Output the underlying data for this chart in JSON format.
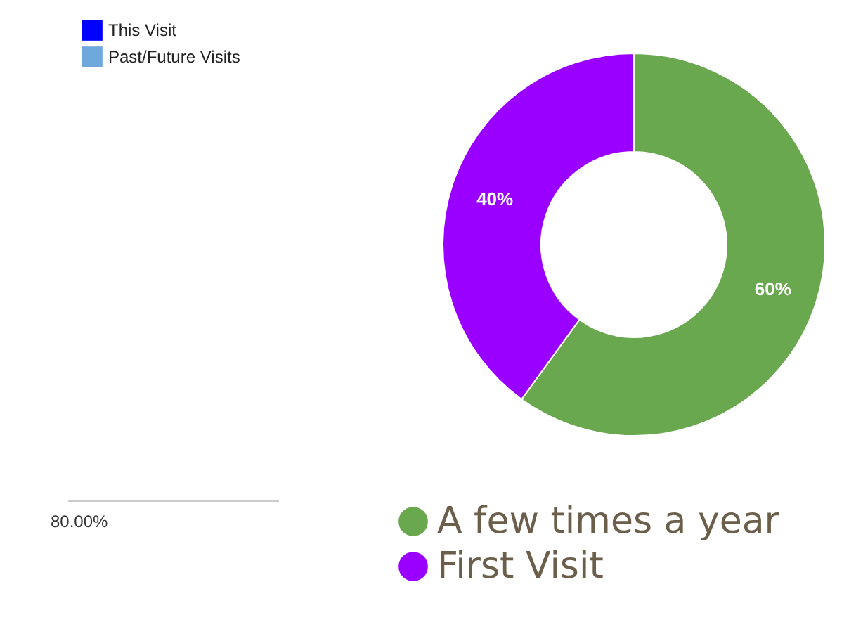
{
  "chart_data": [
    {
      "type": "other",
      "series": [
        {
          "name": "This Visit",
          "color": "#0000ff"
        },
        {
          "name": "Past/Future Visits",
          "color": "#6fa8dc"
        }
      ],
      "annotations": [
        "80.00%"
      ],
      "legend": "top left"
    },
    {
      "type": "donut",
      "categories": [
        "A few times a year",
        "First Visit"
      ],
      "values": [
        60,
        40
      ],
      "colors": [
        "#6aa84f",
        "#9900ff"
      ],
      "value_labels": [
        "60%",
        "40%"
      ],
      "legend": "bottom"
    }
  ]
}
